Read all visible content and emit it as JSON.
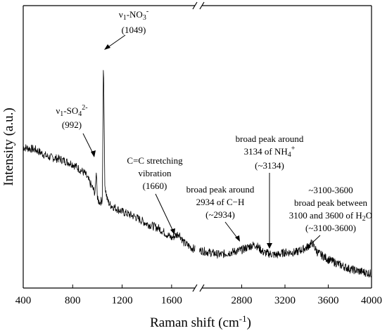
{
  "chart_data": {
    "type": "line",
    "xlabel": "Raman shift  (cm",
    "xlabel_sup": "-1",
    "xlabel_end": ")",
    "ylabel": "Intensity  (a.u.)",
    "broken_axis": true,
    "x_segments": [
      [
        400,
        1800
      ],
      [
        2400,
        4000
      ]
    ],
    "xticks_left": [
      "400",
      "800",
      "1200",
      "1600"
    ],
    "xticks_right": [
      "2800",
      "3200",
      "3600",
      "4000"
    ],
    "grid": false,
    "series": [
      {
        "x": [
          400,
          500,
          600,
          700,
          800,
          900,
          950,
          980,
          992,
          1000,
          1020,
          1040,
          1049,
          1060,
          1080,
          1100,
          1200,
          1300,
          1400,
          1500,
          1600,
          1660,
          1700,
          1760,
          1800,
          2400,
          2500,
          2600,
          2700,
          2800,
          2900,
          2934,
          3000,
          3100,
          3134,
          3200,
          3300,
          3400,
          3450,
          3500,
          3600,
          3700,
          3800,
          3900,
          4000
        ],
        "y": [
          0.56,
          0.55,
          0.52,
          0.51,
          0.49,
          0.45,
          0.4,
          0.37,
          0.46,
          0.34,
          0.33,
          0.34,
          0.95,
          0.4,
          0.34,
          0.32,
          0.29,
          0.27,
          0.24,
          0.22,
          0.18,
          0.2,
          0.16,
          0.14,
          0.13,
          0.13,
          0.12,
          0.11,
          0.12,
          0.13,
          0.15,
          0.15,
          0.12,
          0.11,
          0.11,
          0.12,
          0.12,
          0.14,
          0.16,
          0.12,
          0.09,
          0.07,
          0.05,
          0.04,
          0.03
        ]
      }
    ],
    "annotations": [
      {
        "lines": [
          "ν1-SO42-",
          "(992)"
        ],
        "x": 992
      },
      {
        "lines": [
          "ν1-NO3-",
          "(1049)"
        ],
        "x": 1049
      },
      {
        "lines": [
          "C=C stretching",
          "vibration",
          "(1660)"
        ],
        "x": 1660
      },
      {
        "lines": [
          "broad peak around",
          "2934 of C−H",
          "(~2934)"
        ],
        "x": 2934
      },
      {
        "lines": [
          "broad peak around",
          "3134 of NH4+",
          "(~3134)"
        ],
        "x": 3134
      },
      {
        "lines": [
          "~3100-3600",
          "broad peak between",
          "3100 and 3600 of H2O",
          "(~3100-3600)"
        ],
        "x": 3450
      }
    ]
  }
}
